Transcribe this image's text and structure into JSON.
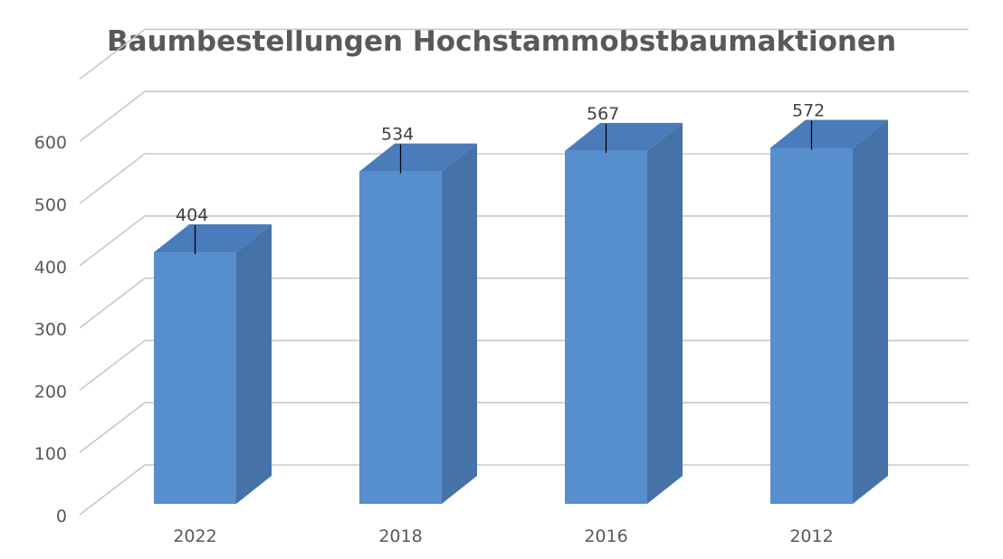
{
  "chart_data": {
    "type": "bar",
    "title": "Baumbestellungen Hochstammobstbaumaktionen",
    "categories": [
      "2022",
      "2018",
      "2016",
      "2012"
    ],
    "values": [
      404,
      534,
      567,
      572
    ],
    "ylim": [
      0,
      700
    ],
    "yticks": [
      0,
      100,
      200,
      300,
      400,
      500,
      600
    ],
    "grid": true,
    "legend": "none",
    "three_d": true,
    "colors": {
      "bar_front": "#568ECE",
      "bar_side": "#4573A8",
      "bar_top": "#4A7BBA",
      "grid": "#C8C8C8",
      "text": "#595959"
    }
  }
}
